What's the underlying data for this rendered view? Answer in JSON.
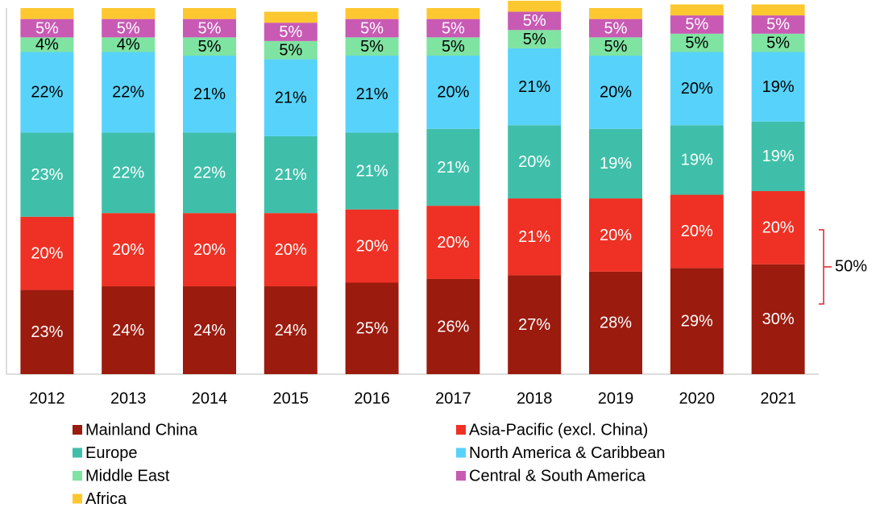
{
  "chart_data": {
    "type": "stacked_bar",
    "categories": [
      "2012",
      "2013",
      "2014",
      "2015",
      "2016",
      "2017",
      "2018",
      "2019",
      "2020",
      "2021"
    ],
    "series": [
      {
        "name": "Mainland China",
        "color": "#9b1b0e",
        "values": [
          23,
          24,
          24,
          24,
          25,
          26,
          27,
          28,
          29,
          30
        ],
        "value_labels": [
          "23%",
          "24%",
          "24%",
          "24%",
          "25%",
          "26%",
          "27%",
          "28%",
          "29%",
          "30%"
        ]
      },
      {
        "name": "Asia-Pacific (excl. China)",
        "color": "#ee3124",
        "values": [
          20,
          20,
          20,
          20,
          20,
          20,
          21,
          20,
          20,
          20
        ],
        "value_labels": [
          "20%",
          "20%",
          "20%",
          "20%",
          "20%",
          "20%",
          "21%",
          "20%",
          "20%",
          "20%"
        ]
      },
      {
        "name": "Europe",
        "color": "#3fbfa9",
        "values": [
          23,
          22,
          22,
          21,
          21,
          21,
          20,
          19,
          19,
          19
        ],
        "value_labels": [
          "23%",
          "22%",
          "22%",
          "21%",
          "21%",
          "21%",
          "20%",
          "19%",
          "19%",
          "19%"
        ]
      },
      {
        "name": "North America & Caribbean",
        "color": "#57d3fb",
        "values": [
          22,
          22,
          21,
          21,
          21,
          20,
          21,
          20,
          20,
          19
        ],
        "value_labels": [
          "22%",
          "22%",
          "21%",
          "21%",
          "21%",
          "20%",
          "21%",
          "20%",
          "20%",
          "19%"
        ]
      },
      {
        "name": "Middle East",
        "color": "#7fe3a2",
        "values": [
          4,
          4,
          5,
          5,
          5,
          5,
          5,
          5,
          5,
          5
        ],
        "value_labels": [
          "4%",
          "4%",
          "5%",
          "5%",
          "5%",
          "5%",
          "5%",
          "5%",
          "5%",
          "5%"
        ]
      },
      {
        "name": "Central & South America",
        "color": "#c85ab4",
        "values": [
          5,
          5,
          5,
          5,
          5,
          5,
          5,
          5,
          5,
          5
        ],
        "value_labels": [
          "5%",
          "5%",
          "5%",
          "5%",
          "5%",
          "5%",
          "5%",
          "5%",
          "5%",
          "5%"
        ]
      },
      {
        "name": "Africa",
        "color": "#fdc82f",
        "values": [
          3,
          3,
          3,
          3,
          3,
          3,
          3,
          3,
          3,
          3
        ]
      }
    ],
    "ylim": [
      0,
      100
    ],
    "annotation": "50%"
  }
}
